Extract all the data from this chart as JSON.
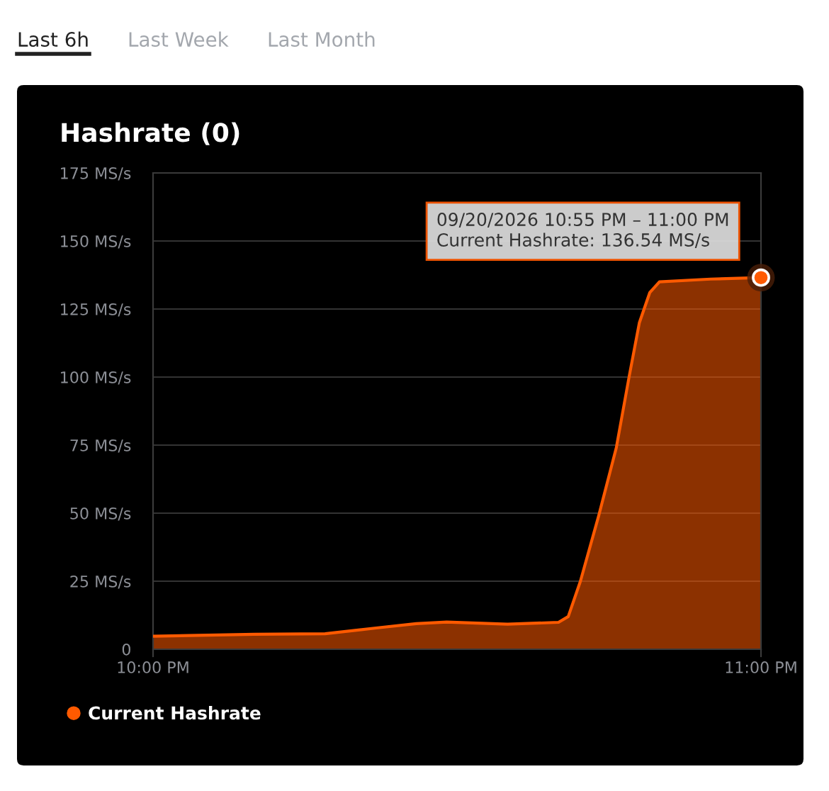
{
  "chart_data": {
    "type": "area",
    "title": "Hashrate (0)",
    "annotations": [
      "Last 6h",
      "Last Week",
      "Last Month",
      {
        "text": "09/20/2026 10:55 PM – 11:00 PM\nCurrent Hashrate: 136.54 MS/s",
        "x": 23,
        "y": 136.54
      }
    ],
    "x": [
      22.0,
      22.167,
      22.283,
      22.367,
      22.433,
      22.483,
      22.583,
      22.667,
      22.683,
      22.703,
      22.733,
      22.762,
      22.783,
      22.8,
      22.817,
      22.833,
      22.917,
      23.0
    ],
    "series": [
      {
        "name": "Current Hashrate",
        "color": "#ff5a00",
        "values": [
          4.8,
          5.5,
          5.7,
          7.8,
          9.4,
          10.0,
          9.2,
          9.9,
          12,
          25,
          49,
          74,
          100,
          120,
          131,
          135,
          136,
          136.54
        ]
      }
    ],
    "xlim": [
      22,
      23
    ],
    "xticks": [
      {
        "value": 22,
        "label": "10:00 PM"
      },
      {
        "value": 23,
        "label": "11:00 PM"
      }
    ],
    "ylim": [
      0,
      175
    ],
    "yticks": [
      0,
      {
        "value": 25,
        "label": "25 MS/s"
      },
      {
        "value": 50,
        "label": "50 MS/s"
      },
      {
        "value": 75,
        "label": "75 MS/s"
      },
      {
        "value": 100,
        "label": "100 MS/s"
      },
      {
        "value": 125,
        "label": "125 MS/s"
      },
      {
        "value": 150,
        "label": "150 MS/s"
      },
      {
        "value": 175,
        "label": "175 MS/s"
      }
    ],
    "grid": "y",
    "legend": "bottom left"
  }
}
